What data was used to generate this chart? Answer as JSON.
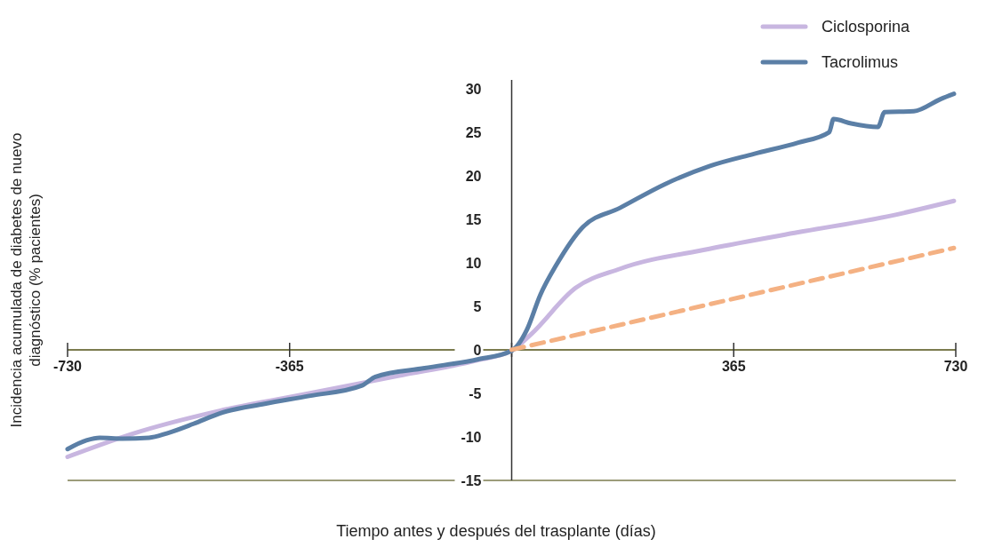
{
  "chart_data": {
    "type": "line",
    "xlabel": "Tiempo antes y después del trasplante (días)",
    "ylabel": "Incidencia acumulada de diabetes de nuevo diagnóstico (% pacientes)",
    "xlim": [
      -730,
      730
    ],
    "xticks": [
      -730,
      -365,
      {
        "value": 0,
        "label": null
      },
      365,
      730
    ],
    "ylim": [
      -15,
      31
    ],
    "yticks": [
      -15,
      -10,
      -5,
      0,
      5,
      10,
      15,
      20,
      25,
      30
    ],
    "grid": false,
    "legend": "top right",
    "marker": "none",
    "series": [
      {
        "name": "Ciclosporina",
        "color": "#c8b6e0",
        "line_style": "solid",
        "x": [
          -730,
          -626,
          -480,
          -333,
          -187,
          -56,
          0,
          32,
          105,
          178,
          325,
          471,
          617,
          727
        ],
        "values": [
          -12.3,
          -9.7,
          -7,
          -5,
          -3,
          -1.2,
          -0.1,
          1.8,
          7.1,
          9.3,
          11.6,
          13.5,
          15.3,
          17.1
        ]
      },
      {
        "name": "Tacrolimus",
        "color": "#5b7fa6",
        "line_style": "solid",
        "x": [
          -730,
          -699,
          -677,
          -640,
          -596,
          -567,
          -523,
          -480,
          -406,
          -333,
          -246,
          -224,
          -143,
          -56,
          0,
          25,
          47,
          73,
          117,
          178,
          251,
          325,
          398,
          471,
          522,
          529,
          558,
          602,
          613,
          661,
          705,
          727
        ],
        "values": [
          -11.4,
          -10.4,
          -10.1,
          -10.2,
          -10.1,
          -9.6,
          -8.5,
          -7.3,
          -6.2,
          -5.3,
          -4.1,
          -3.1,
          -2.1,
          -1.1,
          -0.1,
          2.3,
          6.3,
          9.7,
          14.1,
          16.3,
          19,
          21.1,
          22.5,
          23.8,
          25,
          26.5,
          26,
          25.6,
          27.3,
          27.4,
          28.8,
          29.4
        ]
      },
      {
        "color": "#f4b183",
        "line_style": "dashed",
        "x": [
          0,
          727
        ],
        "values": [
          0,
          11.7
        ]
      }
    ]
  }
}
